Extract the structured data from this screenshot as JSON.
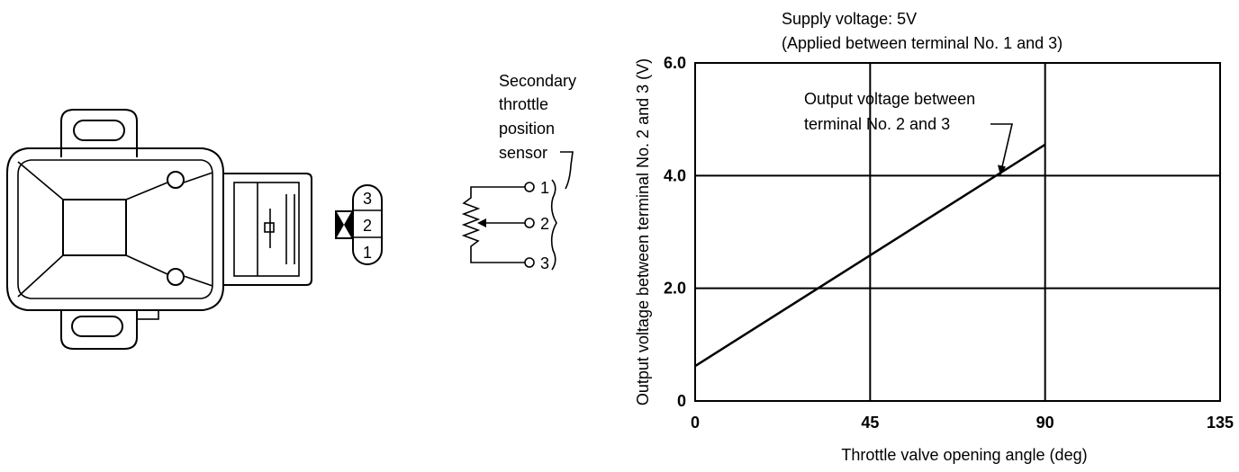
{
  "sensor": {
    "connector_pins": [
      "3",
      "2",
      "1"
    ],
    "label_lines": [
      "Secondary",
      "throttle",
      "position",
      "sensor"
    ],
    "terminal_numbers": [
      "1",
      "2",
      "3"
    ]
  },
  "chart_data": {
    "type": "line",
    "title_lines": [
      "Supply voltage: 5V",
      "(Applied between terminal No. 1 and 3)"
    ],
    "xlabel": "Throttle valve opening angle (deg)",
    "ylabel": "Output voltage between terminal No. 2 and 3 (V)",
    "xlim": [
      0,
      135
    ],
    "ylim": [
      0,
      6
    ],
    "x_ticks": [
      {
        "value": 0,
        "label": "0"
      },
      {
        "value": 45,
        "label": "45"
      },
      {
        "value": 90,
        "label": "90"
      },
      {
        "value": 135,
        "label": "135"
      }
    ],
    "y_ticks": [
      {
        "value": 0,
        "label": "0"
      },
      {
        "value": 2,
        "label": "2.0"
      },
      {
        "value": 4,
        "label": "4.0"
      },
      {
        "value": 6,
        "label": "6.0"
      }
    ],
    "grid": true,
    "series": [
      {
        "points": [
          [
            0,
            0.62
          ],
          [
            90,
            4.55
          ]
        ]
      }
    ],
    "annotation": {
      "lines": [
        "Output voltage between",
        "terminal No. 2 and 3"
      ],
      "target": [
        78.5,
        4.0
      ]
    }
  }
}
